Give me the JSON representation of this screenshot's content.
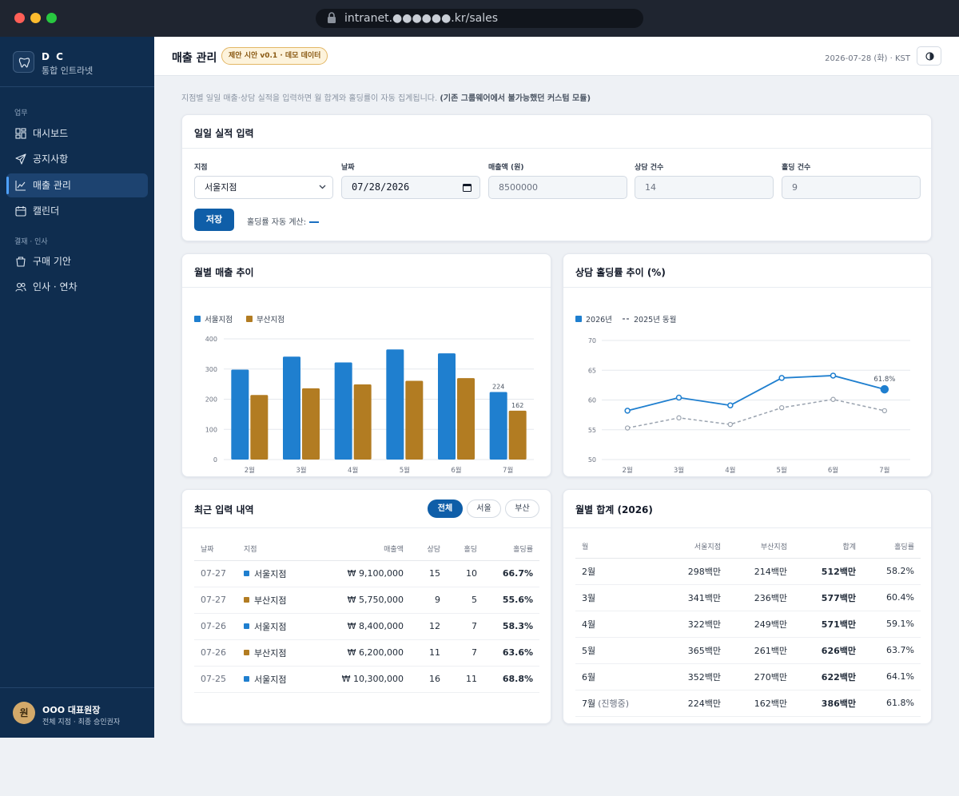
{
  "browser": {
    "url": "intranet.●●●●●●.kr/sales"
  },
  "sidebar": {
    "brand_name": "D C",
    "brand_sub": "통합 인트라넷",
    "section1": "업무",
    "section2": "결재 · 인사",
    "items": [
      {
        "label": "대시보드",
        "icon": "dashboard-icon"
      },
      {
        "label": "공지사항",
        "icon": "send-icon"
      },
      {
        "label": "매출 관리",
        "icon": "line-chart-icon",
        "active": true
      },
      {
        "label": "캘린더",
        "icon": "calendar-icon"
      },
      {
        "label": "구매 기안",
        "icon": "cup-icon"
      },
      {
        "label": "인사 · 연차",
        "icon": "users-icon"
      }
    ],
    "user": {
      "avatar": "원",
      "name": "OOO 대표원장",
      "role": "전체 지점 · 최종 승인권자"
    }
  },
  "header": {
    "title": "매출 관리",
    "badge": "제안 시안 v0.1 · 데모 데이터",
    "date": "2026-07-28 (화) · KST"
  },
  "intro": {
    "text": "지점별 일일 매출·상담 실적을 입력하면 월 합계와 홀딩률이 자동 집계됩니다. ",
    "bold": "(기존 그룹웨어에서 불가능했던 커스텀 모듈)"
  },
  "form": {
    "title": "일일 실적 입력",
    "branch_label": "지점",
    "branch_value": "서울지점",
    "date_label": "날짜",
    "date_value": "07/28/2026",
    "sales_label": "매출액 (원)",
    "sales_placeholder": "8500000",
    "consult_label": "상담 건수",
    "consult_placeholder": "14",
    "hold_label": "홀딩 건수",
    "hold_placeholder": "9",
    "save_label": "저장",
    "calc_label": "홀딩률 자동 계산:"
  },
  "colors": {
    "seoul": "#1f7fcf",
    "busan": "#b27c22",
    "accent": "#0f5ea8"
  },
  "bar_chart": {
    "title": "월별 매출 추이",
    "chart_data": {
      "type": "bar",
      "categories": [
        "2월",
        "3월",
        "4월",
        "5월",
        "6월",
        "7월"
      ],
      "series": [
        {
          "name": "서울지점",
          "values": [
            298,
            341,
            322,
            365,
            352,
            224
          ]
        },
        {
          "name": "부산지점",
          "values": [
            214,
            236,
            249,
            261,
            270,
            162
          ]
        }
      ],
      "ylim": [
        0,
        400
      ],
      "yticks": [
        0,
        100,
        200,
        300,
        400
      ],
      "data_labels": {
        "7월": [
          "224",
          "162"
        ]
      },
      "legend": "top-left",
      "grid": true
    }
  },
  "line_chart": {
    "title": "상담 홀딩률 추이 (%)",
    "chart_data": {
      "type": "line",
      "categories": [
        "2월",
        "3월",
        "4월",
        "5월",
        "6월",
        "7월"
      ],
      "series": [
        {
          "name": "2026년",
          "values": [
            58.2,
            60.4,
            59.1,
            63.7,
            64.1,
            61.8
          ]
        },
        {
          "name": "2025년 동월",
          "values": [
            55.3,
            57.0,
            55.9,
            58.7,
            60.1,
            58.2
          ],
          "dashed": true
        }
      ],
      "ylim": [
        50,
        70
      ],
      "yticks": [
        50,
        55,
        60,
        65,
        70
      ],
      "last_label": "61.8%",
      "legend": "top-left",
      "grid": true
    }
  },
  "recent": {
    "title": "최근 입력 내역",
    "filters": [
      "전체",
      "서울",
      "부산"
    ],
    "columns": [
      "날짜",
      "지점",
      "매출액",
      "상담",
      "홀딩",
      "홀딩률"
    ],
    "rows": [
      {
        "date": "07-27",
        "branch": "서울지점",
        "color": "#1f7fcf",
        "sales": "₩ 9,100,000",
        "consult": "15",
        "hold": "10",
        "rate": "66.7%"
      },
      {
        "date": "07-27",
        "branch": "부산지점",
        "color": "#b27c22",
        "sales": "₩ 5,750,000",
        "consult": "9",
        "hold": "5",
        "rate": "55.6%"
      },
      {
        "date": "07-26",
        "branch": "서울지점",
        "color": "#1f7fcf",
        "sales": "₩ 8,400,000",
        "consult": "12",
        "hold": "7",
        "rate": "58.3%"
      },
      {
        "date": "07-26",
        "branch": "부산지점",
        "color": "#b27c22",
        "sales": "₩ 6,200,000",
        "consult": "11",
        "hold": "7",
        "rate": "63.6%"
      },
      {
        "date": "07-25",
        "branch": "서울지점",
        "color": "#1f7fcf",
        "sales": "₩ 10,300,000",
        "consult": "16",
        "hold": "11",
        "rate": "68.8%"
      }
    ]
  },
  "monthly": {
    "title": "월별 합계 (2026)",
    "columns": [
      "월",
      "서울지점",
      "부산지점",
      "합계",
      "홀딩률"
    ],
    "rows": [
      {
        "month": "2월",
        "note": "",
        "seoul": "298백만",
        "busan": "214백만",
        "total": "512백만",
        "rate": "58.2%"
      },
      {
        "month": "3월",
        "note": "",
        "seoul": "341백만",
        "busan": "236백만",
        "total": "577백만",
        "rate": "60.4%"
      },
      {
        "month": "4월",
        "note": "",
        "seoul": "322백만",
        "busan": "249백만",
        "total": "571백만",
        "rate": "59.1%"
      },
      {
        "month": "5월",
        "note": "",
        "seoul": "365백만",
        "busan": "261백만",
        "total": "626백만",
        "rate": "63.7%"
      },
      {
        "month": "6월",
        "note": "",
        "seoul": "352백만",
        "busan": "270백만",
        "total": "622백만",
        "rate": "64.1%"
      },
      {
        "month": "7월",
        "note": "(진행중)",
        "seoul": "224백만",
        "busan": "162백만",
        "total": "386백만",
        "rate": "61.8%"
      }
    ]
  }
}
